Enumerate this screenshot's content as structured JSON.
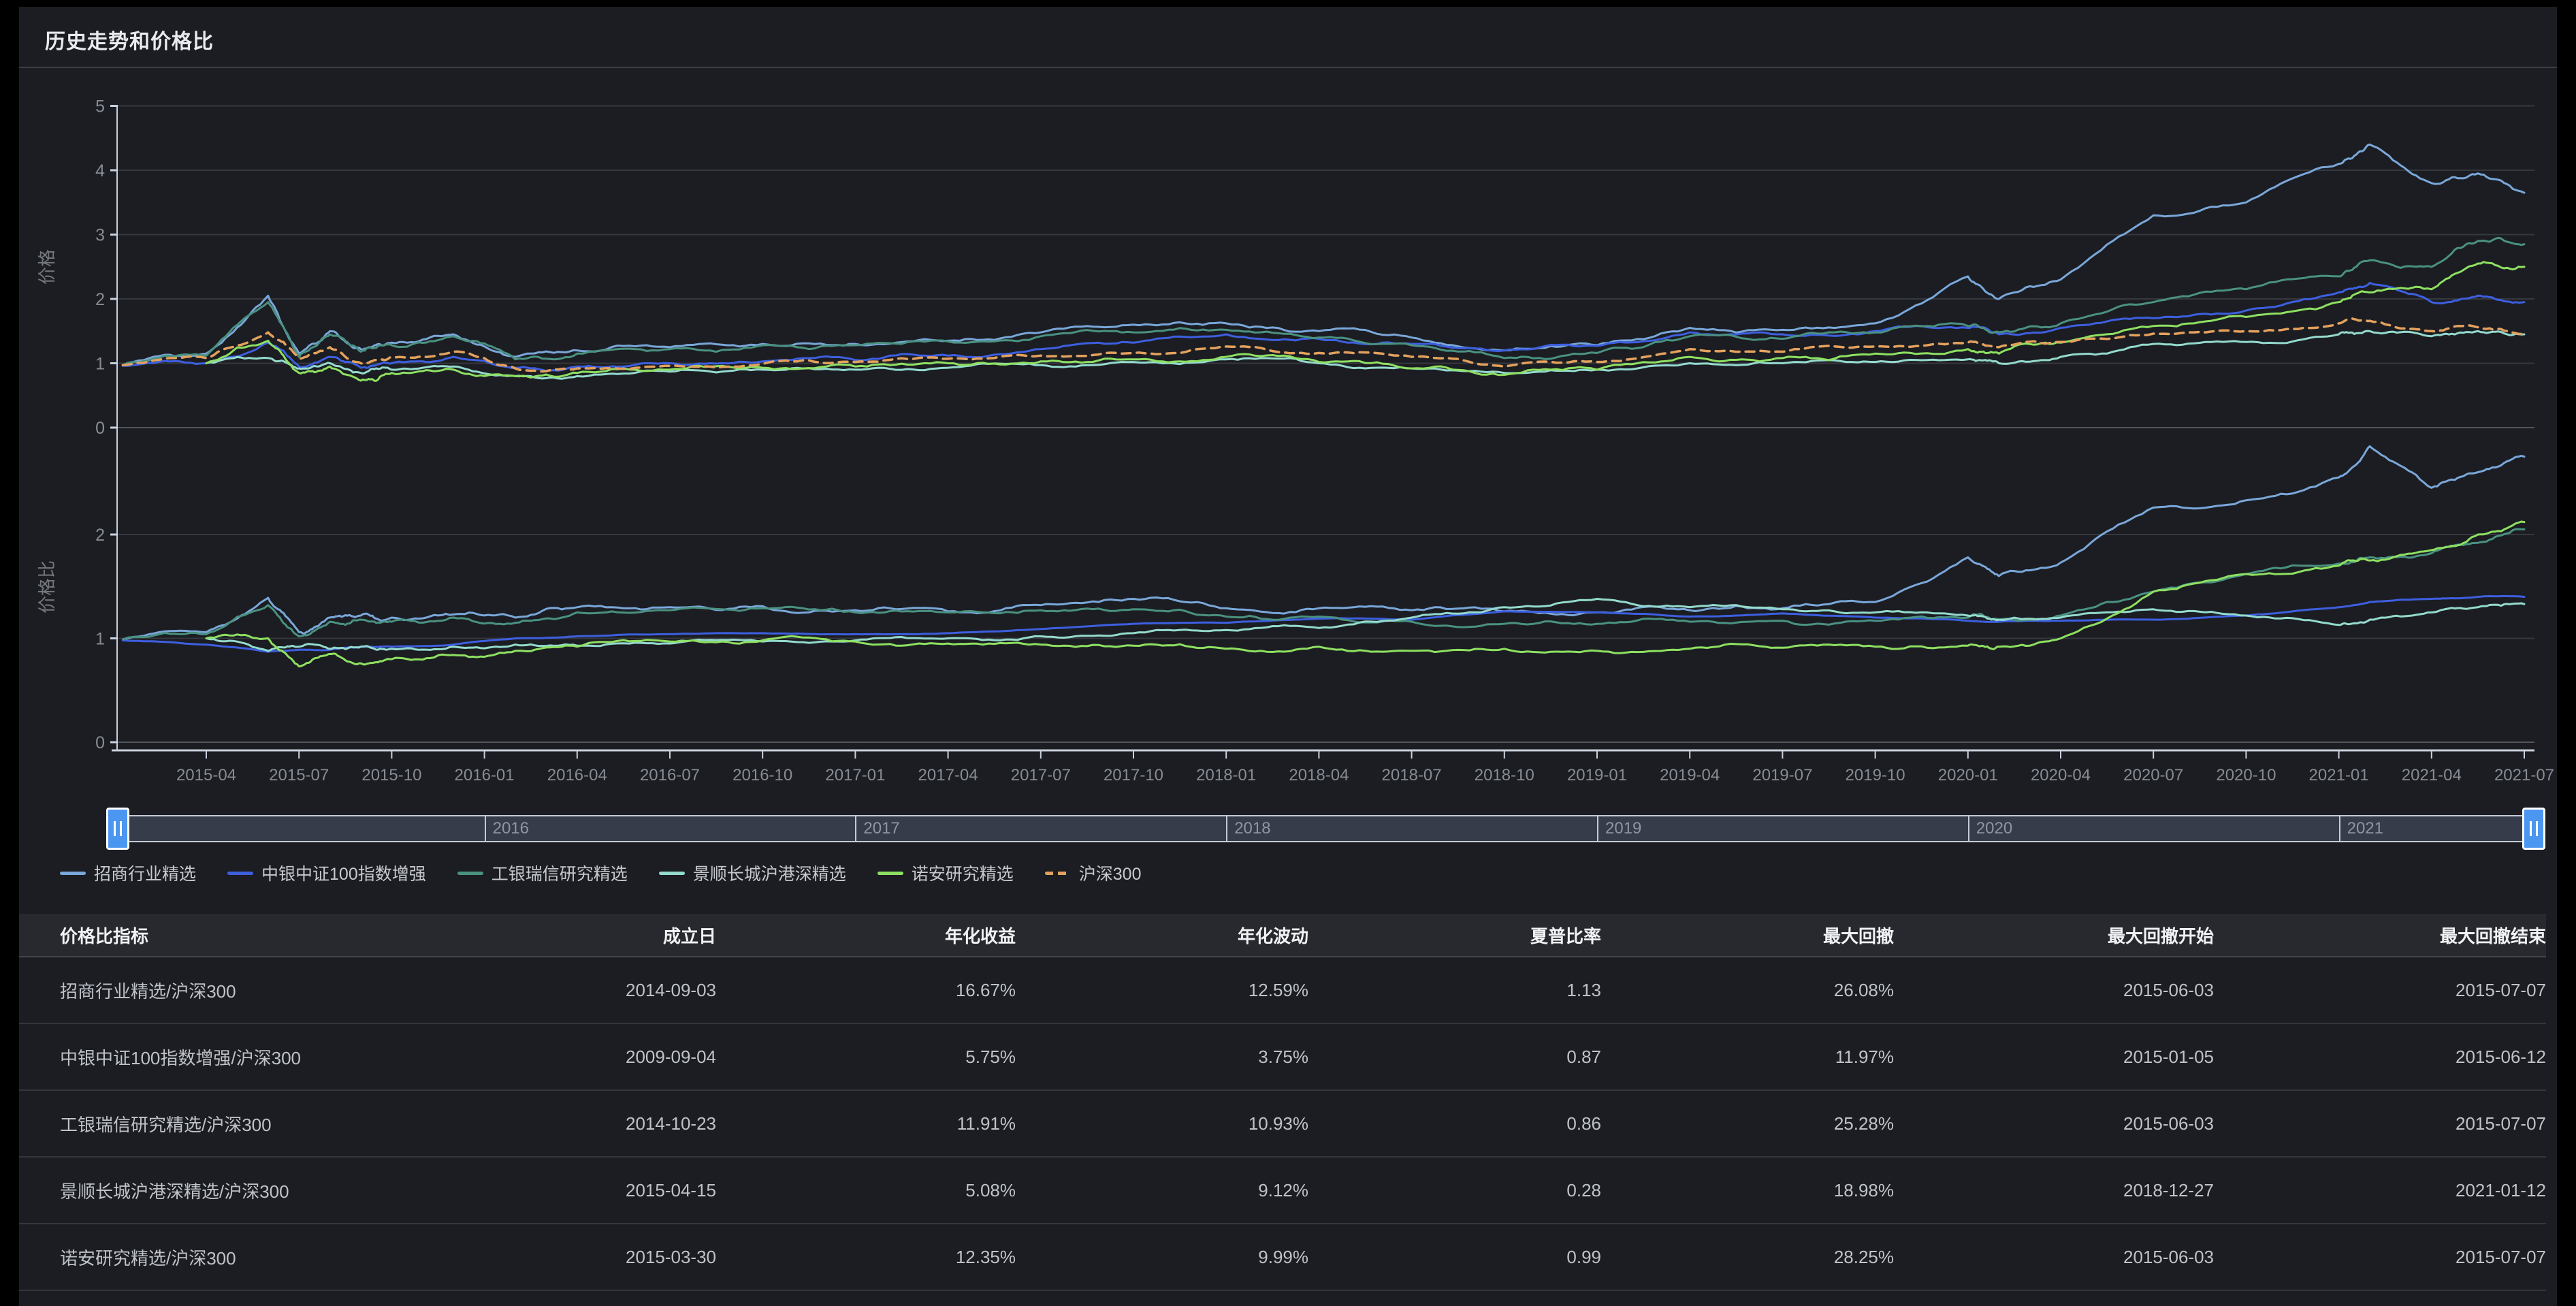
{
  "header": {
    "title": "历史走势和价格比"
  },
  "colors": {
    "zhaoshang": "#7aa7d9",
    "zhongyin": "#3d5fe0",
    "gongyin": "#4a9181",
    "jingshun": "#94dacd",
    "nuoan": "#8ee061",
    "hs300": "#e3a15d",
    "handle_blue": "#4b96f0"
  },
  "legend": {
    "items": [
      {
        "label": "招商行业精选",
        "color": "#7aa7d9",
        "dash": false
      },
      {
        "label": "中银中证100指数增强",
        "color": "#3d5fe0",
        "dash": false
      },
      {
        "label": "工银瑞信研究精选",
        "color": "#4a9181",
        "dash": false
      },
      {
        "label": "景顺长城沪港深精选",
        "color": "#94dacd",
        "dash": false
      },
      {
        "label": "诺安研究精选",
        "color": "#8ee061",
        "dash": false
      },
      {
        "label": "沪深300",
        "color": "#e3a15d",
        "dash": true
      }
    ]
  },
  "slider": {
    "years": [
      "2016",
      "2017",
      "2018",
      "2019",
      "2020",
      "2021"
    ]
  },
  "chart_data": [
    {
      "type": "line",
      "title": "历史走势",
      "ylabel": "价格",
      "ylim": [
        0,
        5
      ],
      "y_ticks": [
        0,
        1,
        2,
        3,
        4,
        5
      ],
      "grid": true,
      "legend_position": "below",
      "x_months_since_2015_01": [
        0.3,
        3,
        5,
        6,
        7,
        8,
        9,
        11,
        13,
        15,
        18,
        21,
        24,
        27,
        30,
        33,
        36,
        39,
        42,
        45,
        48,
        51,
        54,
        57,
        60,
        61,
        63,
        66,
        69,
        72,
        73,
        75,
        76.5,
        78
      ],
      "x_tick_labels": [
        "2015-04",
        "2015-07",
        "2015-10",
        "2016-01",
        "2016-04",
        "2016-07",
        "2016-10",
        "2017-01",
        "2017-04",
        "2017-07",
        "2017-10",
        "2018-01",
        "2018-04",
        "2018-07",
        "2018-10",
        "2019-01",
        "2019-04",
        "2019-07",
        "2019-10",
        "2020-01",
        "2020-04",
        "2020-07",
        "2020-10",
        "2021-01",
        "2021-04",
        "2021-07"
      ],
      "series": [
        {
          "name": "招商行业精选",
          "color": "#7aa7d9",
          "dash": false,
          "noise": 1,
          "values": [
            0.97,
            1.15,
            2.05,
            1.15,
            1.5,
            1.22,
            1.32,
            1.45,
            1.1,
            1.2,
            1.25,
            1.3,
            1.3,
            1.35,
            1.48,
            1.6,
            1.62,
            1.5,
            1.4,
            1.2,
            1.28,
            1.55,
            1.52,
            1.62,
            2.35,
            2.0,
            2.3,
            3.3,
            3.5,
            4.1,
            4.4,
            3.8,
            3.95,
            3.65
          ]
        },
        {
          "name": "中银中证100指数增强",
          "color": "#3d5fe0",
          "dash": false,
          "noise": 0.8,
          "values": [
            0.96,
            1.0,
            1.32,
            0.95,
            1.1,
            0.93,
            1.0,
            1.1,
            0.93,
            0.95,
            1.0,
            1.03,
            1.05,
            1.12,
            1.22,
            1.32,
            1.45,
            1.38,
            1.3,
            1.2,
            1.27,
            1.48,
            1.45,
            1.5,
            1.55,
            1.45,
            1.55,
            1.7,
            1.82,
            2.1,
            2.25,
            1.95,
            2.05,
            1.95
          ]
        },
        {
          "name": "工银瑞信研究精选",
          "color": "#4a9181",
          "dash": false,
          "noise": 1,
          "values": [
            0.97,
            1.12,
            1.95,
            1.1,
            1.45,
            1.18,
            1.28,
            1.42,
            1.06,
            1.15,
            1.22,
            1.28,
            1.28,
            1.34,
            1.42,
            1.48,
            1.52,
            1.4,
            1.28,
            1.08,
            1.16,
            1.42,
            1.38,
            1.48,
            1.58,
            1.48,
            1.62,
            1.95,
            2.15,
            2.35,
            2.6,
            2.5,
            2.9,
            2.85
          ]
        },
        {
          "name": "景顺长城沪港深精选",
          "color": "#94dacd",
          "dash": false,
          "noise": 0.8,
          "values": [
            null,
            1.0,
            1.08,
            0.92,
            1.0,
            0.85,
            0.9,
            0.95,
            0.8,
            0.8,
            0.87,
            0.9,
            0.9,
            0.93,
            0.97,
            1.02,
            1.06,
            1.0,
            0.92,
            0.85,
            0.9,
            1.0,
            1.0,
            1.02,
            1.06,
            1.0,
            1.1,
            1.3,
            1.33,
            1.45,
            1.5,
            1.42,
            1.5,
            1.45
          ]
        },
        {
          "name": "诺安研究精选",
          "color": "#8ee061",
          "dash": false,
          "noise": 1,
          "values": [
            null,
            1.0,
            1.35,
            0.85,
            0.95,
            0.73,
            0.85,
            0.9,
            0.8,
            0.85,
            0.9,
            0.93,
            0.95,
            1.0,
            1.03,
            1.06,
            1.1,
            1.02,
            0.92,
            0.82,
            0.9,
            1.1,
            1.08,
            1.15,
            1.22,
            1.15,
            1.32,
            1.58,
            1.72,
            1.95,
            2.1,
            2.15,
            2.55,
            2.5
          ]
        },
        {
          "name": "沪深300",
          "color": "#e3a15d",
          "dash": true,
          "noise": 0.7,
          "values": [
            0.97,
            1.08,
            1.48,
            1.08,
            1.25,
            1.0,
            1.1,
            1.18,
            0.92,
            0.92,
            0.96,
            0.99,
            1.02,
            1.07,
            1.12,
            1.16,
            1.26,
            1.16,
            1.1,
            0.95,
            1.02,
            1.22,
            1.18,
            1.26,
            1.32,
            1.25,
            1.33,
            1.46,
            1.5,
            1.62,
            1.66,
            1.5,
            1.56,
            1.46
          ]
        }
      ]
    },
    {
      "type": "line",
      "title": "价格比",
      "ylabel": "价格比",
      "ylim": [
        0,
        3.1
      ],
      "y_ticks": [
        0,
        1,
        2
      ],
      "grid": true,
      "x_months_since_2015_01": [
        0.3,
        3,
        5,
        6,
        7,
        8,
        9,
        11,
        13,
        15,
        18,
        21,
        24,
        27,
        30,
        33,
        36,
        39,
        42,
        45,
        48,
        51,
        54,
        57,
        60,
        61,
        63,
        66,
        69,
        72,
        73,
        75,
        76.5,
        78
      ],
      "series": [
        {
          "name": "招商行业精选/沪深300",
          "color": "#7aa7d9",
          "dash": false,
          "noise": 1,
          "values": [
            0.99,
            1.06,
            1.39,
            1.06,
            1.2,
            1.22,
            1.2,
            1.23,
            1.2,
            1.3,
            1.3,
            1.31,
            1.27,
            1.26,
            1.32,
            1.38,
            1.29,
            1.29,
            1.27,
            1.26,
            1.25,
            1.27,
            1.29,
            1.35,
            1.78,
            1.6,
            1.73,
            2.26,
            2.33,
            2.55,
            2.85,
            2.45,
            2.6,
            2.75
          ]
        },
        {
          "name": "中银中证100指数增强/沪深300",
          "color": "#3d5fe0",
          "dash": false,
          "noise": 0.15,
          "values": [
            0.98,
            0.94,
            0.87,
            0.89,
            0.89,
            0.92,
            0.92,
            0.94,
            1.0,
            1.02,
            1.04,
            1.05,
            1.04,
            1.05,
            1.09,
            1.14,
            1.15,
            1.19,
            1.18,
            1.26,
            1.25,
            1.21,
            1.24,
            1.2,
            1.17,
            1.16,
            1.17,
            1.18,
            1.22,
            1.3,
            1.35,
            1.38,
            1.4,
            1.4
          ]
        },
        {
          "name": "工银瑞信研究精选/沪深300",
          "color": "#4a9181",
          "dash": false,
          "noise": 0.9,
          "values": [
            0.99,
            1.04,
            1.32,
            1.02,
            1.16,
            1.18,
            1.16,
            1.2,
            1.15,
            1.25,
            1.27,
            1.29,
            1.25,
            1.25,
            1.27,
            1.28,
            1.21,
            1.21,
            1.16,
            1.14,
            1.14,
            1.16,
            1.17,
            1.17,
            1.2,
            1.18,
            1.22,
            1.45,
            1.62,
            1.72,
            1.78,
            1.82,
            1.92,
            2.05
          ]
        },
        {
          "name": "景顺长城沪港深精选/沪深300",
          "color": "#94dacd",
          "dash": false,
          "noise": 0.7,
          "values": [
            null,
            1.0,
            0.88,
            0.92,
            0.9,
            0.92,
            0.9,
            0.92,
            0.94,
            0.93,
            0.95,
            0.97,
            0.98,
            1.0,
            1.02,
            1.05,
            1.08,
            1.1,
            1.2,
            1.3,
            1.38,
            1.3,
            1.28,
            1.25,
            1.22,
            1.18,
            1.2,
            1.28,
            1.22,
            1.13,
            1.18,
            1.25,
            1.3,
            1.33
          ]
        },
        {
          "name": "诺安研究精选/沪深300",
          "color": "#8ee061",
          "dash": false,
          "noise": 0.9,
          "values": [
            null,
            1.0,
            1.0,
            0.73,
            0.85,
            0.76,
            0.8,
            0.84,
            0.88,
            0.92,
            0.97,
            0.98,
            0.97,
            0.95,
            0.94,
            0.93,
            0.9,
            0.92,
            0.88,
            0.9,
            0.88,
            0.9,
            0.91,
            0.92,
            0.93,
            0.92,
            1.0,
            1.45,
            1.62,
            1.7,
            1.75,
            1.85,
            2.0,
            2.12
          ]
        }
      ]
    }
  ],
  "table": {
    "headers": [
      "价格比指标",
      "成立日",
      "年化收益",
      "年化波动",
      "夏普比率",
      "最大回撤",
      "最大回撤开始",
      "最大回撤结束"
    ],
    "rows": [
      [
        "招商行业精选/沪深300",
        "2014-09-03",
        "16.67%",
        "12.59%",
        "1.13",
        "26.08%",
        "2015-06-03",
        "2015-07-07"
      ],
      [
        "中银中证100指数增强/沪深300",
        "2009-09-04",
        "5.75%",
        "3.75%",
        "0.87",
        "11.97%",
        "2015-01-05",
        "2015-06-12"
      ],
      [
        "工银瑞信研究精选/沪深300",
        "2014-10-23",
        "11.91%",
        "10.93%",
        "0.86",
        "25.28%",
        "2015-06-03",
        "2015-07-07"
      ],
      [
        "景顺长城沪港深精选/沪深300",
        "2015-04-15",
        "5.08%",
        "9.12%",
        "0.28",
        "18.98%",
        "2018-12-27",
        "2021-01-12"
      ],
      [
        "诺安研究精选/沪深300",
        "2015-03-30",
        "12.35%",
        "9.99%",
        "0.99",
        "28.25%",
        "2015-06-03",
        "2015-07-07"
      ]
    ]
  }
}
